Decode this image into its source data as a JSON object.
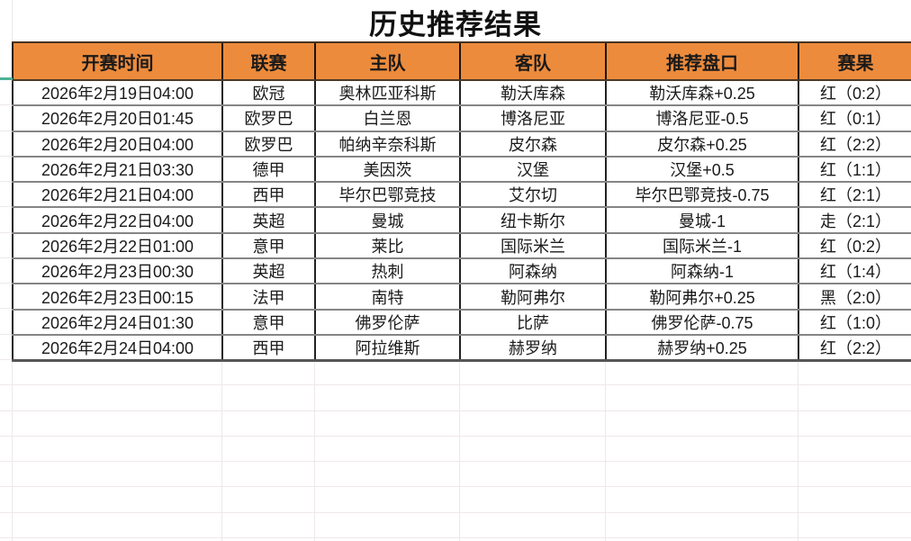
{
  "title": "历史推荐结果",
  "colors": {
    "header_bg": "#ED8B3C",
    "result_red": "#E06060",
    "result_push": "#EFB545",
    "result_black": "#222222",
    "accent_teal": "#4CB295"
  },
  "table": {
    "columns": [
      "开赛时间",
      "联赛",
      "主队",
      "客队",
      "推荐盘口",
      "赛果"
    ],
    "rows": [
      {
        "kickoff": "2026年2月19日04:00",
        "league": "欧冠",
        "home": "奥林匹亚科斯",
        "away": "勒沃库森",
        "handicap": "勒沃库森+0.25",
        "result": "红（0:2）",
        "result_type": "red"
      },
      {
        "kickoff": "2026年2月20日01:45",
        "league": "欧罗巴",
        "home": "白兰恩",
        "away": "博洛尼亚",
        "handicap": "博洛尼亚-0.5",
        "result": "红（0:1）",
        "result_type": "red"
      },
      {
        "kickoff": "2026年2月20日04:00",
        "league": "欧罗巴",
        "home": "帕纳辛奈科斯",
        "away": "皮尔森",
        "handicap": "皮尔森+0.25",
        "result": "红（2:2）",
        "result_type": "red"
      },
      {
        "kickoff": "2026年2月21日03:30",
        "league": "德甲",
        "home": "美因茨",
        "away": "汉堡",
        "handicap": "汉堡+0.5",
        "result": "红（1:1）",
        "result_type": "red"
      },
      {
        "kickoff": "2026年2月21日04:00",
        "league": "西甲",
        "home": "毕尔巴鄂竞技",
        "away": "艾尔切",
        "handicap": "毕尔巴鄂竞技-0.75",
        "result": "红（2:1）",
        "result_type": "red"
      },
      {
        "kickoff": "2026年2月22日04:00",
        "league": "英超",
        "home": "曼城",
        "away": "纽卡斯尔",
        "handicap": "曼城-1",
        "result": "走（2:1）",
        "result_type": "push"
      },
      {
        "kickoff": "2026年2月22日01:00",
        "league": "意甲",
        "home": "莱比",
        "away": "国际米兰",
        "handicap": "国际米兰-1",
        "result": "红（0:2）",
        "result_type": "red"
      },
      {
        "kickoff": "2026年2月23日00:30",
        "league": "英超",
        "home": "热刺",
        "away": "阿森纳",
        "handicap": "阿森纳-1",
        "result": "红（1:4）",
        "result_type": "red"
      },
      {
        "kickoff": "2026年2月23日00:15",
        "league": "法甲",
        "home": "南特",
        "away": "勒阿弗尔",
        "handicap": "勒阿弗尔+0.25",
        "result": "黑（2:0）",
        "result_type": "black"
      },
      {
        "kickoff": "2026年2月24日01:30",
        "league": "意甲",
        "home": "佛罗伦萨",
        "away": "比萨",
        "handicap": "佛罗伦萨-0.75",
        "result": "红（1:0）",
        "result_type": "red"
      },
      {
        "kickoff": "2026年2月24日04:00",
        "league": "西甲",
        "home": "阿拉维斯",
        "away": "赫罗纳",
        "handicap": "赫罗纳+0.25",
        "result": "红（2:2）",
        "result_type": "red"
      }
    ]
  }
}
